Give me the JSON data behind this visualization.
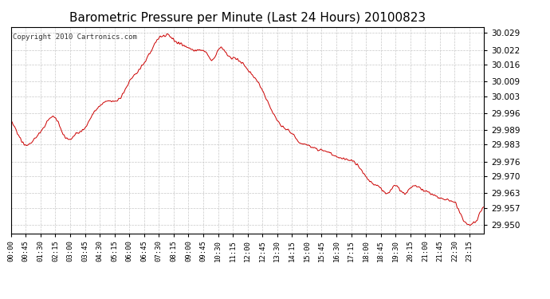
{
  "title": "Barometric Pressure per Minute (Last 24 Hours) 20100823",
  "copyright": "Copyright 2010 Cartronics.com",
  "line_color": "#cc0000",
  "bg_color": "#ffffff",
  "plot_bg_color": "#ffffff",
  "grid_color": "#c8c8c8",
  "yticks": [
    29.95,
    29.957,
    29.963,
    29.97,
    29.976,
    29.983,
    29.989,
    29.996,
    30.003,
    30.009,
    30.016,
    30.022,
    30.029
  ],
  "ylim": [
    29.9465,
    30.0315
  ],
  "xtick_labels": [
    "00:00",
    "00:45",
    "01:30",
    "02:15",
    "03:00",
    "03:45",
    "04:30",
    "05:15",
    "06:00",
    "06:45",
    "07:30",
    "08:15",
    "09:00",
    "09:45",
    "10:30",
    "11:15",
    "12:00",
    "12:45",
    "13:30",
    "14:15",
    "15:00",
    "15:45",
    "16:30",
    "17:15",
    "18:00",
    "18:45",
    "19:30",
    "20:15",
    "21:00",
    "21:45",
    "22:30",
    "23:15"
  ],
  "xtick_positions": [
    0,
    45,
    90,
    135,
    180,
    225,
    270,
    315,
    360,
    405,
    450,
    495,
    540,
    585,
    630,
    675,
    720,
    765,
    810,
    855,
    900,
    945,
    990,
    1035,
    1080,
    1125,
    1170,
    1215,
    1260,
    1305,
    1350,
    1395
  ],
  "ctrl_x": [
    0,
    15,
    30,
    45,
    75,
    90,
    105,
    135,
    150,
    165,
    195,
    225,
    255,
    270,
    300,
    330,
    360,
    390,
    420,
    435,
    450,
    465,
    480,
    495,
    510,
    525,
    540,
    555,
    570,
    585,
    600,
    615,
    630,
    660,
    690,
    720,
    750,
    780,
    810,
    840,
    855,
    870,
    900,
    930,
    960,
    990,
    1020,
    1050,
    1080,
    1110,
    1125,
    1140,
    1155,
    1170,
    1185,
    1200,
    1215,
    1230,
    1245,
    1260,
    1275,
    1290,
    1310,
    1335,
    1355,
    1380,
    1395,
    1410,
    1420,
    1430,
    1439
  ],
  "ctrl_y": [
    29.992,
    29.989,
    29.985,
    29.983,
    29.986,
    29.988,
    29.991,
    29.994,
    29.99,
    29.986,
    29.987,
    29.99,
    29.997,
    29.999,
    30.001,
    30.002,
    30.009,
    30.014,
    30.02,
    30.024,
    30.027,
    30.028,
    30.028,
    30.026,
    30.025,
    30.024,
    30.023,
    30.022,
    30.022,
    30.022,
    30.02,
    30.018,
    30.022,
    30.02,
    30.018,
    30.014,
    30.009,
    30.001,
    29.993,
    29.989,
    29.988,
    29.985,
    29.983,
    29.981,
    29.98,
    29.978,
    29.977,
    29.975,
    29.97,
    29.966,
    29.965,
    29.963,
    29.964,
    29.966,
    29.964,
    29.963,
    29.965,
    29.966,
    29.965,
    29.964,
    29.963,
    29.962,
    29.961,
    29.96,
    29.958,
    29.951,
    29.95,
    29.951,
    29.953,
    29.956,
    29.957
  ]
}
